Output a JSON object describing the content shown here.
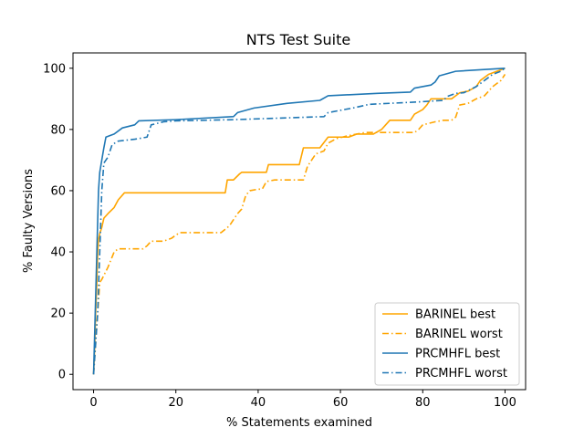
{
  "chart_data": {
    "type": "line",
    "title": "NTS Test Suite",
    "xlabel": "% Statements examined",
    "ylabel": "% Faulty Versions",
    "xlim": [
      -5,
      105
    ],
    "ylim": [
      -5,
      105
    ],
    "xticks": [
      0,
      20,
      40,
      60,
      80,
      100
    ],
    "yticks": [
      0,
      20,
      40,
      60,
      80,
      100
    ],
    "grid": false,
    "legend_position": "lower-right",
    "series": [
      {
        "name": "BARINEL best",
        "color": "#ffa500",
        "style": "solid",
        "points": [
          [
            0,
            0
          ],
          [
            0.3,
            10
          ],
          [
            0.5,
            20
          ],
          [
            0.8,
            30
          ],
          [
            1,
            40
          ],
          [
            1.2,
            44
          ],
          [
            1.5,
            46
          ],
          [
            2,
            48
          ],
          [
            2.5,
            51
          ],
          [
            3.5,
            52.5
          ],
          [
            5,
            54.5
          ],
          [
            6,
            57
          ],
          [
            7.5,
            59.3
          ],
          [
            32,
            59.3
          ],
          [
            32.5,
            63.5
          ],
          [
            34,
            63.5
          ],
          [
            35.5,
            65.5
          ],
          [
            36,
            66
          ],
          [
            42,
            66
          ],
          [
            42.5,
            68.5
          ],
          [
            50,
            68.5
          ],
          [
            51,
            74
          ],
          [
            55,
            74
          ],
          [
            57,
            77.5
          ],
          [
            62,
            77.5
          ],
          [
            64,
            78.5
          ],
          [
            68,
            78.5
          ],
          [
            70,
            80
          ],
          [
            71,
            81.5
          ],
          [
            72,
            83
          ],
          [
            77,
            83
          ],
          [
            78,
            85
          ],
          [
            80,
            86.5
          ],
          [
            81,
            88
          ],
          [
            82,
            90
          ],
          [
            87,
            90
          ],
          [
            88,
            91
          ],
          [
            89,
            92
          ],
          [
            91,
            92.5
          ],
          [
            93,
            94
          ],
          [
            94,
            96
          ],
          [
            96,
            98
          ],
          [
            98,
            99
          ],
          [
            99,
            99.5
          ],
          [
            100,
            100
          ]
        ]
      },
      {
        "name": "BARINEL worst",
        "color": "#ffa500",
        "style": "dashdot",
        "points": [
          [
            0,
            0
          ],
          [
            0.5,
            10
          ],
          [
            1,
            20
          ],
          [
            1.5,
            30
          ],
          [
            2,
            31
          ],
          [
            3.5,
            35
          ],
          [
            5,
            40
          ],
          [
            6,
            41
          ],
          [
            12,
            41
          ],
          [
            13,
            42
          ],
          [
            14,
            43.5
          ],
          [
            17,
            43.5
          ],
          [
            19,
            44.5
          ],
          [
            20,
            45.5
          ],
          [
            21,
            46.3
          ],
          [
            31,
            46.3
          ],
          [
            33,
            48.5
          ],
          [
            35,
            52.5
          ],
          [
            36,
            54
          ],
          [
            37,
            58.5
          ],
          [
            38,
            60
          ],
          [
            40,
            60.5
          ],
          [
            41,
            60.5
          ],
          [
            42,
            63
          ],
          [
            44,
            63.5
          ],
          [
            51,
            63.5
          ],
          [
            52,
            68
          ],
          [
            53,
            70
          ],
          [
            54,
            72
          ],
          [
            56,
            73
          ],
          [
            57,
            75.5
          ],
          [
            59,
            77
          ],
          [
            62,
            78
          ],
          [
            64,
            78.5
          ],
          [
            66,
            79
          ],
          [
            78,
            79
          ],
          [
            79,
            80
          ],
          [
            80,
            81.5
          ],
          [
            83,
            82.5
          ],
          [
            85,
            83
          ],
          [
            87,
            83
          ],
          [
            88,
            84
          ],
          [
            89,
            88
          ],
          [
            91,
            88.5
          ],
          [
            93,
            90
          ],
          [
            95,
            91
          ],
          [
            97,
            94
          ],
          [
            99,
            96
          ],
          [
            100,
            98
          ]
        ]
      },
      {
        "name": "PRCMHFL best",
        "color": "#1f77b4",
        "style": "solid",
        "points": [
          [
            0,
            0
          ],
          [
            0.2,
            10
          ],
          [
            0.4,
            20
          ],
          [
            0.6,
            30
          ],
          [
            0.8,
            40
          ],
          [
            1,
            50
          ],
          [
            1.2,
            60
          ],
          [
            1.5,
            66
          ],
          [
            2,
            70
          ],
          [
            2.5,
            74
          ],
          [
            3,
            77.5
          ],
          [
            5,
            78.5
          ],
          [
            7,
            80.5
          ],
          [
            10,
            81.5
          ],
          [
            11,
            82.8
          ],
          [
            20,
            83.2
          ],
          [
            34,
            84.2
          ],
          [
            35,
            85.5
          ],
          [
            39,
            87
          ],
          [
            47,
            88.5
          ],
          [
            55,
            89.5
          ],
          [
            57,
            91
          ],
          [
            69,
            91.8
          ],
          [
            77,
            92.2
          ],
          [
            78,
            93.5
          ],
          [
            82,
            94.5
          ],
          [
            83,
            95.5
          ],
          [
            84,
            97.5
          ],
          [
            88,
            99
          ],
          [
            100,
            100
          ]
        ]
      },
      {
        "name": "PRCMHFL worst",
        "color": "#1f77b4",
        "style": "dashdot",
        "points": [
          [
            0,
            0
          ],
          [
            0.5,
            10
          ],
          [
            1,
            20
          ],
          [
            1.5,
            40
          ],
          [
            2,
            60
          ],
          [
            2.5,
            69
          ],
          [
            3.5,
            71
          ],
          [
            4.5,
            75
          ],
          [
            6,
            76.2
          ],
          [
            10,
            76.8
          ],
          [
            13,
            77.5
          ],
          [
            14,
            81.5
          ],
          [
            17,
            82.5
          ],
          [
            20,
            82.8
          ],
          [
            34,
            83.2
          ],
          [
            56,
            84.2
          ],
          [
            57,
            85.5
          ],
          [
            63,
            87
          ],
          [
            67,
            88.2
          ],
          [
            79,
            89
          ],
          [
            85,
            89.5
          ],
          [
            86,
            90.8
          ],
          [
            88,
            91.8
          ],
          [
            90,
            92
          ],
          [
            93,
            94
          ],
          [
            95,
            96
          ],
          [
            97,
            98
          ],
          [
            99,
            99
          ],
          [
            100,
            100
          ]
        ]
      }
    ]
  }
}
